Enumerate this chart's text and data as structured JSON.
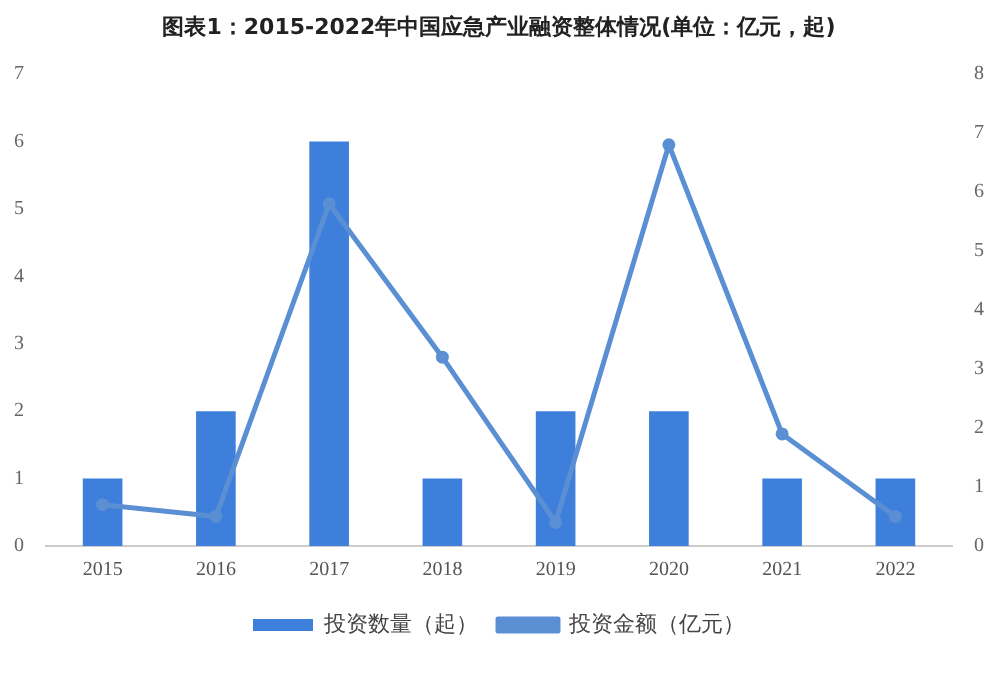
{
  "chart_data": {
    "type": "bar",
    "title": "图表1：2015-2022年中国应急产业融资整体情况(单位：亿元，起)",
    "categories": [
      "2015",
      "2016",
      "2017",
      "2018",
      "2019",
      "2020",
      "2021",
      "2022"
    ],
    "series": [
      {
        "name": "投资数量（起）",
        "color": "#3f7fdc",
        "values": [
          1,
          2,
          6,
          1,
          2,
          2,
          1,
          1
        ]
      },
      {
        "name": "投资金额（亿元）",
        "type": "line",
        "axis": "y2",
        "color": "#5b8fd4",
        "values": [
          0.7,
          0.5,
          5.8,
          3.2,
          0.4,
          6.8,
          1.9,
          0.5
        ]
      }
    ],
    "ylim": [
      0,
      7
    ],
    "yticks": [
      0,
      1,
      2,
      3,
      4,
      5,
      6,
      7
    ],
    "y2lim": [
      0,
      8
    ],
    "y2ticks": [
      0,
      1,
      2,
      3,
      4,
      5,
      6,
      7,
      8
    ],
    "grid": false,
    "legend": "bottom",
    "marker": "circle",
    "line_style": "solid"
  }
}
